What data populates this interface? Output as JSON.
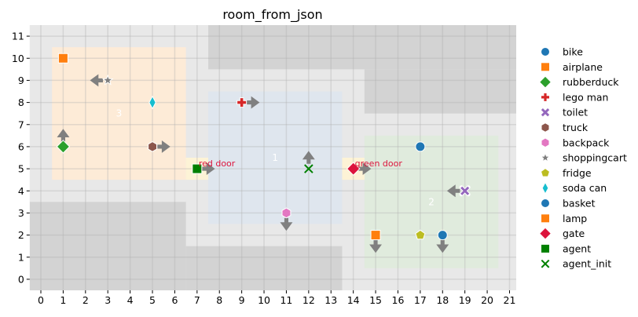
{
  "chart_data": {
    "type": "scatter",
    "title": "room_from_json",
    "xlim": [
      -0.5,
      21.3
    ],
    "ylim": [
      -0.5,
      11.5
    ],
    "xticks": [
      0,
      1,
      2,
      3,
      4,
      5,
      6,
      7,
      8,
      9,
      10,
      11,
      12,
      13,
      14,
      15,
      16,
      17,
      18,
      19,
      20,
      21
    ],
    "yticks": [
      0,
      1,
      2,
      3,
      4,
      5,
      6,
      7,
      8,
      9,
      10,
      11
    ],
    "grid": true,
    "legend_placement": "outside-right",
    "background_color": "#e8e8e8",
    "walls": [
      {
        "x": [
          7.5,
          21.5
        ],
        "y": [
          9.5,
          11.5
        ]
      },
      {
        "x": [
          14.5,
          21.5
        ],
        "y": [
          7.5,
          9.5
        ]
      },
      {
        "x": [
          -0.5,
          6.5
        ],
        "y": [
          -0.5,
          3.5
        ]
      },
      {
        "x": [
          6.5,
          13.5
        ],
        "y": [
          -0.5,
          1.5
        ]
      }
    ],
    "wall_color": "#d3d3d3",
    "rooms": [
      {
        "label": "3",
        "x": [
          0.5,
          6.5
        ],
        "y": [
          4.5,
          10.5
        ],
        "color": "#fdebd7",
        "label_pos": [
          3.5,
          7.5
        ]
      },
      {
        "label": "1",
        "x": [
          7.5,
          13.5
        ],
        "y": [
          2.5,
          8.5
        ],
        "color": "#dfe6ee",
        "label_pos": [
          10.5,
          5.5
        ]
      },
      {
        "label": "2",
        "x": [
          14.5,
          20.5
        ],
        "y": [
          0.5,
          6.5
        ],
        "color": "#e0ebdd",
        "label_pos": [
          17.5,
          3.5
        ]
      }
    ],
    "doors": [
      {
        "label": "red door",
        "x": 7,
        "y": 5,
        "color": "#fdf3d6"
      },
      {
        "label": "green door",
        "x": 14,
        "y": 5,
        "color": "#fdf3d6"
      }
    ],
    "door_label_color": "#dc143c",
    "series": [
      {
        "name": "bike",
        "marker": "circle",
        "color": "#1f77b4",
        "points": [
          {
            "x": 17,
            "y": 6,
            "dir": null
          }
        ]
      },
      {
        "name": "airplane",
        "marker": "square",
        "color": "#ff7f0e",
        "points": [
          {
            "x": 1,
            "y": 10,
            "dir": null
          }
        ]
      },
      {
        "name": "rubberduck",
        "marker": "diamond",
        "color": "#2ca02c",
        "points": [
          {
            "x": 1,
            "y": 6,
            "dir": "up"
          }
        ]
      },
      {
        "name": "lego man",
        "marker": "plus",
        "color": "#d62728",
        "points": [
          {
            "x": 9,
            "y": 8,
            "dir": "right"
          }
        ]
      },
      {
        "name": "toilet",
        "marker": "x",
        "color": "#9467bd",
        "points": [
          {
            "x": 19,
            "y": 4,
            "dir": "left"
          }
        ]
      },
      {
        "name": "truck",
        "marker": "hexagon",
        "color": "#8c564b",
        "points": [
          {
            "x": 5,
            "y": 6,
            "dir": "right"
          }
        ]
      },
      {
        "name": "backpack",
        "marker": "hexagon",
        "color": "#e377c2",
        "points": [
          {
            "x": 11,
            "y": 3,
            "dir": "down"
          }
        ]
      },
      {
        "name": "shoppingcart",
        "marker": "star",
        "color": "#7f7f7f",
        "points": [
          {
            "x": 3,
            "y": 9,
            "dir": "left"
          }
        ]
      },
      {
        "name": "fridge",
        "marker": "pentagon",
        "color": "#bcbd22",
        "points": [
          {
            "x": 17,
            "y": 2,
            "dir": null
          }
        ]
      },
      {
        "name": "soda can",
        "marker": "thin_diamond",
        "color": "#17becf",
        "points": [
          {
            "x": 5,
            "y": 8,
            "dir": null
          }
        ]
      },
      {
        "name": "basket",
        "marker": "circle",
        "color": "#1f77b4",
        "points": [
          {
            "x": 18,
            "y": 2,
            "dir": "down"
          }
        ]
      },
      {
        "name": "lamp",
        "marker": "square",
        "color": "#ff7f0e",
        "points": [
          {
            "x": 15,
            "y": 2,
            "dir": "down"
          }
        ]
      },
      {
        "name": "gate",
        "marker": "diamond",
        "color": "#dc143c",
        "points": [
          {
            "x": 14,
            "y": 5,
            "dir": "right"
          }
        ]
      },
      {
        "name": "agent",
        "marker": "square",
        "color": "#008000",
        "points": [
          {
            "x": 7,
            "y": 5,
            "dir": "right"
          }
        ]
      },
      {
        "name": "agent_init",
        "marker": "xthin",
        "color": "#008000",
        "points": [
          {
            "x": 12,
            "y": 5,
            "dir": "up"
          }
        ]
      }
    ],
    "arrow_color": "#808080"
  }
}
